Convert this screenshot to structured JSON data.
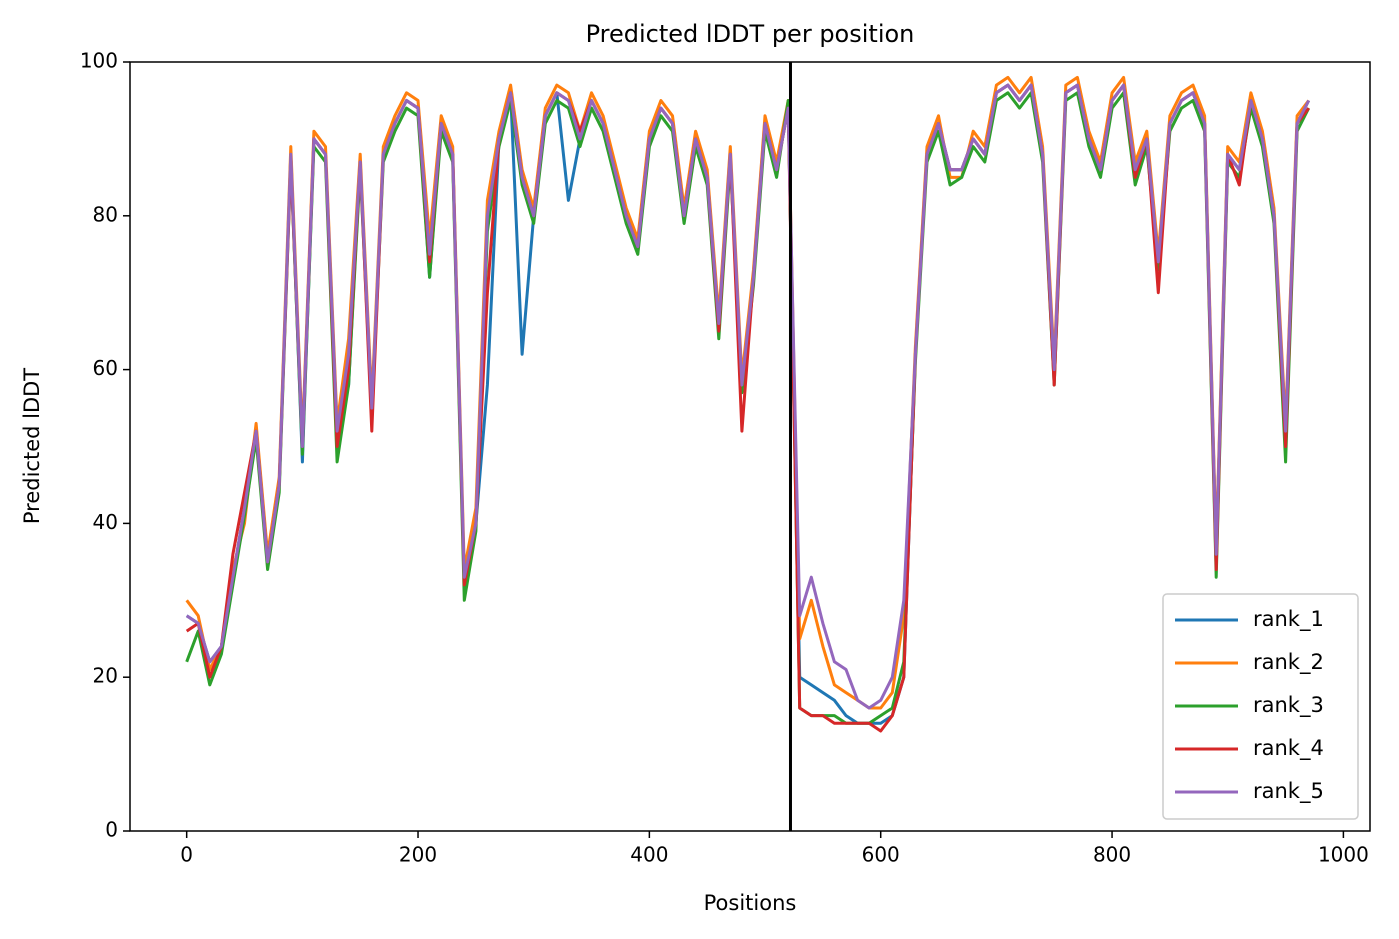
{
  "chart_data": {
    "type": "line",
    "title": "Predicted lDDT per position",
    "xlabel": "Positions",
    "ylabel": "Predicted lDDT",
    "xlim": [
      -49,
      1023
    ],
    "ylim": [
      0,
      100
    ],
    "xticks": [
      0,
      200,
      400,
      600,
      800,
      1000
    ],
    "yticks": [
      0,
      20,
      40,
      60,
      80,
      100
    ],
    "vline": 522,
    "legend": "lower right",
    "x": [
      0,
      10,
      20,
      30,
      40,
      50,
      60,
      70,
      80,
      90,
      100,
      110,
      120,
      130,
      140,
      150,
      160,
      170,
      180,
      190,
      200,
      210,
      220,
      230,
      240,
      250,
      260,
      270,
      280,
      290,
      300,
      310,
      320,
      330,
      340,
      350,
      360,
      370,
      380,
      390,
      400,
      410,
      420,
      430,
      440,
      450,
      460,
      470,
      480,
      490,
      500,
      510,
      520,
      530,
      540,
      550,
      560,
      570,
      580,
      590,
      600,
      610,
      620,
      630,
      640,
      650,
      660,
      670,
      680,
      690,
      700,
      710,
      720,
      730,
      740,
      750,
      760,
      770,
      780,
      790,
      800,
      810,
      820,
      830,
      840,
      850,
      860,
      870,
      880,
      890,
      900,
      910,
      920,
      930,
      940,
      950,
      960,
      970
    ],
    "series": [
      {
        "name": "rank_1",
        "color": "#1f77b4",
        "values": [
          28,
          27,
          22,
          24,
          33,
          42,
          52,
          35,
          45,
          88,
          48,
          90,
          88,
          52,
          58,
          87,
          55,
          88,
          92,
          95,
          94,
          72,
          92,
          88,
          32,
          40,
          58,
          90,
          96,
          62,
          80,
          93,
          96,
          82,
          90,
          95,
          92,
          86,
          80,
          76,
          90,
          94,
          92,
          80,
          90,
          85,
          66,
          88,
          58,
          72,
          92,
          86,
          94,
          20,
          19,
          18,
          17,
          15,
          14,
          14,
          14,
          15,
          20,
          62,
          88,
          92,
          86,
          86,
          90,
          88,
          96,
          97,
          95,
          97,
          88,
          60,
          96,
          97,
          90,
          86,
          95,
          97,
          86,
          90,
          74,
          92,
          95,
          96,
          92,
          36,
          88,
          86,
          95,
          90,
          80,
          52,
          92,
          95
        ]
      },
      {
        "name": "rank_2",
        "color": "#ff7f0e",
        "values": [
          30,
          28,
          21,
          24,
          34,
          40,
          53,
          36,
          46,
          89,
          51,
          91,
          89,
          53,
          64,
          88,
          56,
          89,
          93,
          96,
          95,
          77,
          93,
          89,
          34,
          42,
          82,
          91,
          97,
          86,
          81,
          94,
          97,
          96,
          91,
          96,
          93,
          87,
          81,
          77,
          91,
          95,
          93,
          81,
          91,
          86,
          67,
          89,
          59,
          73,
          93,
          87,
          95,
          25,
          30,
          24,
          19,
          18,
          17,
          16,
          16,
          18,
          28,
          63,
          89,
          93,
          85,
          85,
          91,
          89,
          97,
          98,
          96,
          98,
          89,
          61,
          97,
          98,
          91,
          87,
          96,
          98,
          87,
          91,
          75,
          93,
          96,
          97,
          93,
          37,
          89,
          87,
          96,
          91,
          81,
          53,
          93,
          95
        ]
      },
      {
        "name": "rank_3",
        "color": "#2ca02c",
        "values": [
          22,
          26,
          19,
          23,
          32,
          41,
          51,
          34,
          44,
          87,
          49,
          89,
          87,
          48,
          58,
          86,
          54,
          87,
          91,
          94,
          93,
          72,
          91,
          87,
          30,
          39,
          78,
          89,
          95,
          84,
          79,
          92,
          95,
          94,
          89,
          94,
          91,
          85,
          79,
          75,
          89,
          93,
          91,
          79,
          89,
          84,
          64,
          87,
          57,
          71,
          91,
          85,
          95,
          16,
          15,
          15,
          15,
          14,
          14,
          14,
          15,
          16,
          22,
          61,
          87,
          91,
          84,
          85,
          89,
          87,
          95,
          96,
          94,
          96,
          87,
          58,
          95,
          96,
          89,
          85,
          94,
          96,
          84,
          89,
          73,
          91,
          94,
          95,
          91,
          33,
          87,
          85,
          94,
          89,
          79,
          48,
          91,
          94
        ]
      },
      {
        "name": "rank_4",
        "color": "#d62728",
        "values": [
          26,
          27,
          20,
          24,
          36,
          44,
          52,
          35,
          45,
          87,
          50,
          90,
          88,
          50,
          60,
          87,
          52,
          88,
          92,
          95,
          94,
          74,
          92,
          88,
          32,
          40,
          70,
          90,
          96,
          85,
          80,
          93,
          96,
          95,
          91,
          95,
          92,
          86,
          80,
          76,
          90,
          94,
          92,
          80,
          90,
          85,
          65,
          88,
          52,
          72,
          92,
          86,
          94,
          16,
          15,
          15,
          14,
          14,
          14,
          14,
          13,
          15,
          20,
          62,
          88,
          92,
          86,
          86,
          90,
          88,
          96,
          97,
          95,
          97,
          88,
          58,
          96,
          97,
          90,
          86,
          95,
          97,
          85,
          90,
          70,
          92,
          95,
          96,
          92,
          34,
          88,
          84,
          95,
          90,
          80,
          50,
          92,
          94
        ]
      },
      {
        "name": "rank_5",
        "color": "#9467bd",
        "values": [
          28,
          27,
          22,
          24,
          33,
          42,
          52,
          35,
          45,
          88,
          50,
          90,
          88,
          52,
          62,
          87,
          55,
          88,
          92,
          95,
          94,
          75,
          92,
          88,
          33,
          40,
          80,
          90,
          96,
          85,
          80,
          93,
          96,
          95,
          90,
          95,
          92,
          86,
          80,
          76,
          90,
          94,
          92,
          80,
          90,
          85,
          66,
          88,
          58,
          72,
          92,
          86,
          94,
          28,
          33,
          27,
          22,
          21,
          17,
          16,
          17,
          20,
          30,
          62,
          88,
          92,
          86,
          86,
          90,
          88,
          96,
          97,
          95,
          97,
          88,
          60,
          96,
          97,
          90,
          86,
          95,
          97,
          86,
          90,
          74,
          92,
          95,
          96,
          92,
          36,
          88,
          86,
          95,
          90,
          80,
          52,
          92,
          95
        ]
      }
    ]
  }
}
